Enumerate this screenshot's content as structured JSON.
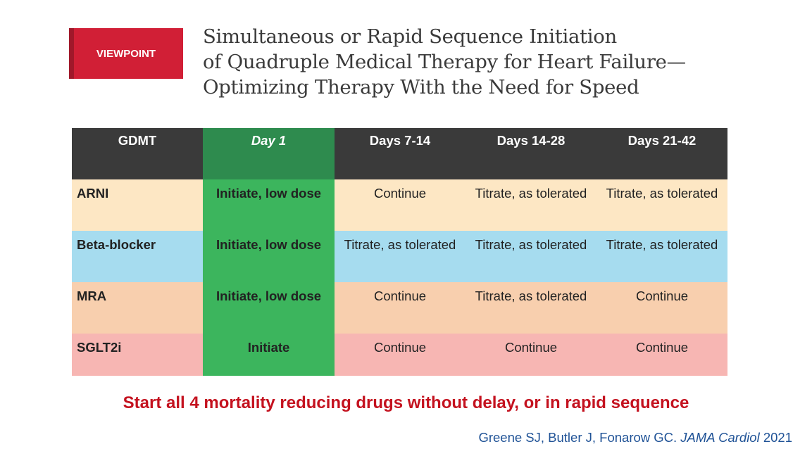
{
  "badge": {
    "label": "VIEWPOINT"
  },
  "title": {
    "lines": [
      "Simultaneous or Rapid Sequence Initiation",
      "of Quadruple Medical Therapy for Heart Failure—",
      "Optimizing Therapy With the Need for Speed"
    ]
  },
  "table": {
    "headers": [
      "GDMT",
      "Day 1",
      "Days 7-14",
      "Days 14-28",
      "Days 21-42"
    ],
    "rows": [
      {
        "drug": "ARNI",
        "cells": [
          "Initiate, low dose",
          "Continue",
          "Titrate, as tolerated",
          "Titrate, as tolerated"
        ]
      },
      {
        "drug": "Beta-blocker",
        "cells": [
          "Initiate, low dose",
          "Titrate, as tolerated",
          "Titrate, as tolerated",
          "Titrate, as tolerated"
        ]
      },
      {
        "drug": "MRA",
        "cells": [
          "Initiate, low dose",
          "Continue",
          "Titrate, as tolerated",
          "Continue"
        ]
      },
      {
        "drug": "SGLT2i",
        "cells": [
          "Initiate",
          "Continue",
          "Continue",
          "Continue"
        ]
      }
    ]
  },
  "footer": {
    "text": "Start all 4 mortality reducing drugs without delay, or in rapid sequence"
  },
  "citation": {
    "authors": "Greene SJ, Butler J, Fonarow GC. ",
    "journal": "JAMA Cardiol",
    "year": " 2021"
  },
  "colors": {
    "badge": "#d11f36",
    "header": "#3a3a3a",
    "day1_header": "#2e8b4e",
    "day1_column": "#3cb55d",
    "arni_row": "#fde7c4",
    "beta_blocker_row": "#a6dcef",
    "mra_row": "#f8cfae",
    "sglt2i_row": "#f7b6b3",
    "footer_text": "#c4121f",
    "citation_text": "#1f5296"
  }
}
